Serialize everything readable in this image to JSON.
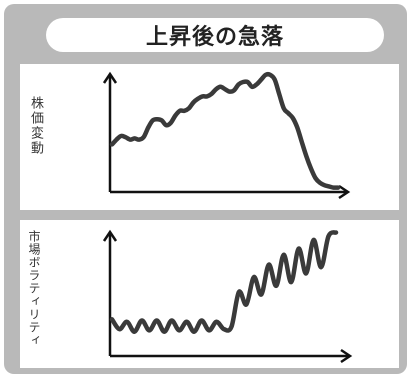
{
  "header": {
    "title": "上昇後の急落"
  },
  "charts": {
    "top": {
      "ylabel": "株価変動"
    },
    "bottom": {
      "ylabel": "市場ボラティリティ"
    }
  },
  "chart_data": [
    {
      "type": "line",
      "ylabel": "株価変動",
      "xlabel": "",
      "x": [
        0,
        1,
        2,
        3,
        4,
        5,
        6,
        7,
        8,
        9,
        10,
        11,
        12,
        13,
        14,
        15,
        16,
        17,
        18,
        19,
        20,
        21,
        22,
        23,
        24,
        25,
        26,
        27,
        28,
        29,
        30,
        31,
        32,
        33,
        34,
        35,
        36,
        37,
        38,
        39,
        40,
        41,
        42,
        43,
        44,
        45,
        46,
        47,
        48,
        49,
        50
      ],
      "values": [
        38,
        42,
        45,
        44,
        42,
        43,
        42,
        44,
        52,
        58,
        59,
        58,
        54,
        56,
        62,
        66,
        66,
        68,
        73,
        76,
        78,
        78,
        80,
        84,
        86,
        84,
        82,
        83,
        88,
        90,
        90,
        86,
        88,
        92,
        96,
        96,
        92,
        80,
        68,
        64,
        60,
        52,
        40,
        28,
        18,
        10,
        6,
        4,
        3,
        2,
        2
      ],
      "ylim": [
        0,
        100
      ]
    },
    {
      "type": "line",
      "ylabel": "市場ボラティリティ",
      "xlabel": "",
      "x": [
        0,
        1,
        2,
        3,
        4,
        5,
        6,
        7,
        8,
        9,
        10,
        11,
        12,
        13,
        14,
        15,
        16,
        17,
        18,
        19,
        20,
        21,
        22,
        23,
        24,
        25,
        26,
        27,
        28,
        29,
        30
      ],
      "values": [
        28,
        20,
        26,
        18,
        27,
        19,
        27,
        18,
        27,
        19,
        26,
        18,
        27,
        19,
        26,
        20,
        22,
        50,
        40,
        62,
        48,
        72,
        55,
        80,
        58,
        85,
        65,
        92,
        70,
        95,
        98
      ],
      "ylim": [
        0,
        100
      ]
    }
  ]
}
